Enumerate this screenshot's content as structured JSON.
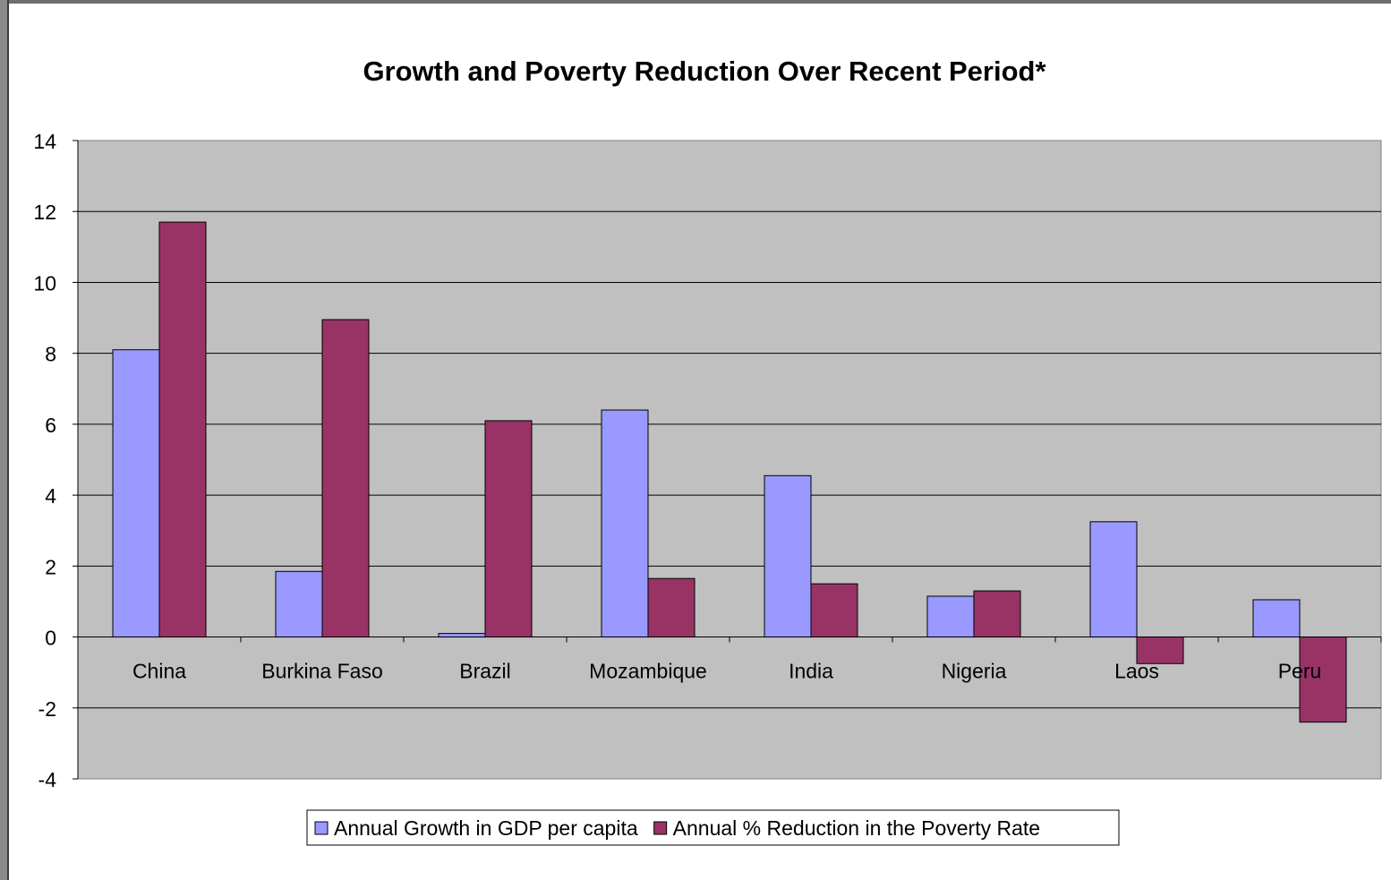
{
  "chart_data": {
    "type": "bar",
    "title": "Growth and Poverty Reduction Over Recent Period*",
    "categories": [
      "China",
      "Burkina Faso",
      "Brazil",
      "Mozambique",
      "India",
      "Nigeria",
      "Laos",
      "Peru"
    ],
    "series": [
      {
        "name": "Annual Growth in GDP per capita",
        "color": "#9999ff",
        "values": [
          8.1,
          1.85,
          0.1,
          6.4,
          4.55,
          1.15,
          3.25,
          1.05
        ]
      },
      {
        "name": "Annual % Reduction in the Poverty Rate",
        "color": "#993366",
        "values": [
          11.7,
          8.95,
          6.1,
          1.65,
          1.5,
          1.3,
          -0.75,
          -2.4
        ]
      }
    ],
    "ylim": [
      -4,
      14
    ],
    "yticks": [
      "-4",
      "-2",
      "0",
      "2",
      "4",
      "6",
      "8",
      "10",
      "12",
      "14"
    ],
    "grid": true,
    "plot_background": "#c0c0c0",
    "legend_position": "bottom"
  }
}
